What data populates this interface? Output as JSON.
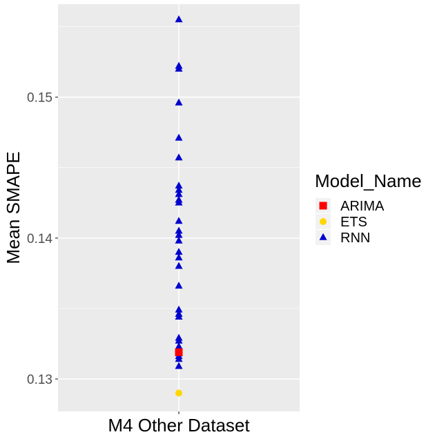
{
  "chart_data": {
    "type": "scatter",
    "title": "",
    "xlabel": "M4 Other Dataset",
    "ylabel": "Mean SMAPE",
    "ylim": [
      0.1277,
      0.1566
    ],
    "grid": true,
    "legend_position": "right",
    "y_ticks": [
      {
        "value": 0.13,
        "label": "0.13"
      },
      {
        "value": 0.14,
        "label": "0.14"
      },
      {
        "value": 0.15,
        "label": "0.15"
      }
    ],
    "legend": {
      "title": "Model_Name",
      "entries": [
        {
          "label": "ARIMA",
          "color": "#ff0000",
          "shape": "square"
        },
        {
          "label": "ETS",
          "color": "#ffd700",
          "shape": "circle"
        },
        {
          "label": "RNN",
          "color": "#0000cd",
          "shape": "triangle"
        }
      ]
    },
    "series": [
      {
        "name": "ARIMA",
        "color": "#ff0000",
        "shape": "square",
        "values": [
          0.1319
        ]
      },
      {
        "name": "ETS",
        "color": "#ffd700",
        "shape": "circle",
        "values": [
          0.129
        ]
      },
      {
        "name": "RNN",
        "color": "#0000cd",
        "shape": "triangle",
        "values": [
          0.1555,
          0.1522,
          0.152,
          0.1496,
          0.1471,
          0.1457,
          0.1437,
          0.1434,
          0.1431,
          0.1427,
          0.1425,
          0.1412,
          0.1405,
          0.1402,
          0.1398,
          0.139,
          0.1386,
          0.138,
          0.1366,
          0.1349,
          0.1346,
          0.1344,
          0.1329,
          0.1327,
          0.1323,
          0.132,
          0.1318,
          0.1316,
          0.1314,
          0.1309
        ]
      }
    ]
  }
}
